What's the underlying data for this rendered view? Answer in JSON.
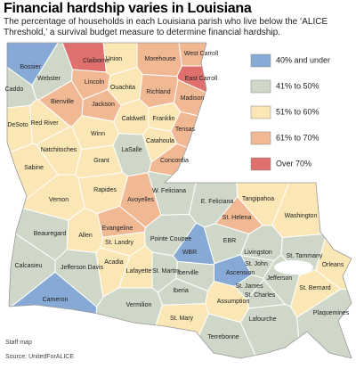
{
  "title": "Financial hardship varies in Louisiana",
  "subtitle": "The percentage of households in each Louisiana parish who live below the ‘ALICE Threshold,’ a survival budget measure to determine financial hardship.",
  "legend": [
    {
      "label": "40% and under",
      "color": "#86a9d6"
    },
    {
      "label": "41% to 50%",
      "color": "#cfd8c8"
    },
    {
      "label": "51% to 60%",
      "color": "#fbe7b5"
    },
    {
      "label": "61% to 70%",
      "color": "#f1b894"
    },
    {
      "label": "Over 70%",
      "color": "#e0706e"
    }
  ],
  "parishes": [
    {
      "name": "Caddo",
      "category": 1
    },
    {
      "name": "Bossier",
      "category": 0
    },
    {
      "name": "Webster",
      "category": 1
    },
    {
      "name": "Claiborne",
      "category": 4
    },
    {
      "name": "Union",
      "category": 2
    },
    {
      "name": "Morehouse",
      "category": 3
    },
    {
      "name": "West Carroll",
      "category": 3
    },
    {
      "name": "East Carroll",
      "category": 4
    },
    {
      "name": "Lincoln",
      "category": 3
    },
    {
      "name": "Bienville",
      "category": 3
    },
    {
      "name": "Jackson",
      "category": 3
    },
    {
      "name": "Ouachita",
      "category": 2
    },
    {
      "name": "Richland",
      "category": 3
    },
    {
      "name": "Madison",
      "category": 3
    },
    {
      "name": "DeSoto",
      "category": 2
    },
    {
      "name": "Red River",
      "category": 2
    },
    {
      "name": "Caldwell",
      "category": 2
    },
    {
      "name": "Franklin",
      "category": 2
    },
    {
      "name": "Tensas",
      "category": 3
    },
    {
      "name": "Winn",
      "category": 2
    },
    {
      "name": "Natchitoches",
      "category": 2
    },
    {
      "name": "Grant",
      "category": 2
    },
    {
      "name": "LaSalle",
      "category": 1
    },
    {
      "name": "Catahoula",
      "category": 2
    },
    {
      "name": "Concordia",
      "category": 3
    },
    {
      "name": "Sabine",
      "category": 2
    },
    {
      "name": "Vernon",
      "category": 2
    },
    {
      "name": "Rapides",
      "category": 2
    },
    {
      "name": "Avoyelles",
      "category": 3
    },
    {
      "name": "Beauregard",
      "category": 1
    },
    {
      "name": "Allen",
      "category": 2
    },
    {
      "name": "Evangeline",
      "category": 3
    },
    {
      "name": "St. Landry",
      "category": 2
    },
    {
      "name": "Pointe Coupee",
      "category": 1
    },
    {
      "name": "W. Feliciana",
      "category": 1
    },
    {
      "name": "E. Feliciana",
      "category": 1
    },
    {
      "name": "St. Helena",
      "category": 3
    },
    {
      "name": "Tangipahoa",
      "category": 2
    },
    {
      "name": "Washington",
      "category": 2
    },
    {
      "name": "Calcasieu",
      "category": 1
    },
    {
      "name": "Jefferson Davis",
      "category": 1
    },
    {
      "name": "Acadia",
      "category": 2
    },
    {
      "name": "Lafayette",
      "category": 2
    },
    {
      "name": "St. Martin",
      "category": 1
    },
    {
      "name": "WBR",
      "category": 0
    },
    {
      "name": "EBR",
      "category": 1
    },
    {
      "name": "Livingston",
      "category": 1
    },
    {
      "name": "St. Tammany",
      "category": 1
    },
    {
      "name": "Iberville",
      "category": 1
    },
    {
      "name": "Ascension",
      "category": 0
    },
    {
      "name": "St. John",
      "category": 1
    },
    {
      "name": "Jefferson",
      "category": 1
    },
    {
      "name": "Orleans",
      "category": 2
    },
    {
      "name": "Cameron",
      "category": 0
    },
    {
      "name": "Vermilion",
      "category": 1
    },
    {
      "name": "Iberia",
      "category": 1
    },
    {
      "name": "St. James",
      "category": 1
    },
    {
      "name": "Assumption",
      "category": 2
    },
    {
      "name": "St. Charles",
      "category": 1
    },
    {
      "name": "Lafourche",
      "category": 1
    },
    {
      "name": "St. Mary",
      "category": 2
    },
    {
      "name": "Terrebonne",
      "category": 1
    },
    {
      "name": "Plaquemines",
      "category": 1
    },
    {
      "name": "St. Bernard",
      "category": 2
    }
  ],
  "credit": "Staff map",
  "source": "Source: UnitedForALICE"
}
